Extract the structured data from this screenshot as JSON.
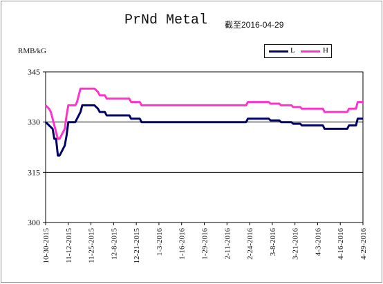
{
  "chart_data": {
    "type": "line",
    "title": "PrNd Metal",
    "date_label": "截至2016-04-29",
    "ylabel": "RMB/kG",
    "ylim": [
      300,
      345
    ],
    "yticks": [
      300,
      315,
      330,
      345
    ],
    "grid": "horizontal at 315 and 330",
    "legend_position": "top-right",
    "x_tick_labels": [
      "10-30-2015",
      "11-12-2015",
      "11-25-2015",
      "12-8-2015",
      "12-21-2015",
      "1-3-2016",
      "1-16-2016",
      "1-29-2016",
      "2-11-2016",
      "2-24-2016",
      "3-8-2016",
      "3-21-2016",
      "4-3-2016",
      "4-16-2016",
      "4-29-2016"
    ],
    "x_range": [
      "2015-10-30",
      "2016-04-29"
    ],
    "series": [
      {
        "name": "L",
        "color": "#000066",
        "points": [
          [
            "2015-10-30",
            330
          ],
          [
            "2015-11-01",
            329
          ],
          [
            "2015-11-03",
            328
          ],
          [
            "2015-11-04",
            325
          ],
          [
            "2015-11-05",
            325
          ],
          [
            "2015-11-06",
            320
          ],
          [
            "2015-11-07",
            320
          ],
          [
            "2015-11-08",
            321
          ],
          [
            "2015-11-09",
            322
          ],
          [
            "2015-11-10",
            323
          ],
          [
            "2015-11-11",
            326
          ],
          [
            "2015-11-12",
            330
          ],
          [
            "2015-11-16",
            330
          ],
          [
            "2015-11-17",
            331
          ],
          [
            "2015-11-18",
            332
          ],
          [
            "2015-11-19",
            333
          ],
          [
            "2015-11-20",
            335
          ],
          [
            "2015-11-27",
            335
          ],
          [
            "2015-11-29",
            334
          ],
          [
            "2015-11-30",
            333
          ],
          [
            "2015-12-03",
            333
          ],
          [
            "2015-12-04",
            332
          ],
          [
            "2015-12-17",
            332
          ],
          [
            "2015-12-18",
            331
          ],
          [
            "2015-12-23",
            331
          ],
          [
            "2015-12-24",
            330
          ],
          [
            "2016-02-22",
            330
          ],
          [
            "2016-02-23",
            331
          ],
          [
            "2016-03-06",
            331
          ],
          [
            "2016-03-07",
            330.5
          ],
          [
            "2016-03-12",
            330.5
          ],
          [
            "2016-03-13",
            330
          ],
          [
            "2016-03-19",
            330
          ],
          [
            "2016-03-20",
            329.5
          ],
          [
            "2016-03-24",
            329.5
          ],
          [
            "2016-03-25",
            329
          ],
          [
            "2016-04-06",
            329
          ],
          [
            "2016-04-07",
            328
          ],
          [
            "2016-04-20",
            328
          ],
          [
            "2016-04-21",
            329
          ],
          [
            "2016-04-25",
            329
          ],
          [
            "2016-04-26",
            331
          ],
          [
            "2016-04-29",
            331
          ]
        ]
      },
      {
        "name": "H",
        "color": "#ff33cc",
        "points": [
          [
            "2015-10-30",
            335
          ],
          [
            "2015-11-01",
            334
          ],
          [
            "2015-11-02",
            333
          ],
          [
            "2015-11-03",
            331
          ],
          [
            "2015-11-04",
            329
          ],
          [
            "2015-11-05",
            327
          ],
          [
            "2015-11-06",
            325
          ],
          [
            "2015-11-07",
            325
          ],
          [
            "2015-11-08",
            326
          ],
          [
            "2015-11-09",
            327
          ],
          [
            "2015-11-10",
            328
          ],
          [
            "2015-11-11",
            332
          ],
          [
            "2015-11-12",
            335
          ],
          [
            "2015-11-16",
            335
          ],
          [
            "2015-11-17",
            336
          ],
          [
            "2015-11-18",
            338
          ],
          [
            "2015-11-19",
            340
          ],
          [
            "2015-11-27",
            340
          ],
          [
            "2015-11-29",
            339
          ],
          [
            "2015-11-30",
            338
          ],
          [
            "2015-12-03",
            338
          ],
          [
            "2015-12-04",
            337
          ],
          [
            "2015-12-17",
            337
          ],
          [
            "2015-12-18",
            336
          ],
          [
            "2015-12-23",
            336
          ],
          [
            "2015-12-24",
            335
          ],
          [
            "2016-02-22",
            335
          ],
          [
            "2016-02-23",
            336
          ],
          [
            "2016-03-06",
            336
          ],
          [
            "2016-03-07",
            335.5
          ],
          [
            "2016-03-12",
            335.5
          ],
          [
            "2016-03-13",
            335
          ],
          [
            "2016-03-19",
            335
          ],
          [
            "2016-03-20",
            334.5
          ],
          [
            "2016-03-24",
            334.5
          ],
          [
            "2016-03-25",
            334
          ],
          [
            "2016-04-06",
            334
          ],
          [
            "2016-04-07",
            333
          ],
          [
            "2016-04-20",
            333
          ],
          [
            "2016-04-21",
            334
          ],
          [
            "2016-04-25",
            334
          ],
          [
            "2016-04-26",
            336
          ],
          [
            "2016-04-29",
            336
          ]
        ]
      }
    ]
  }
}
